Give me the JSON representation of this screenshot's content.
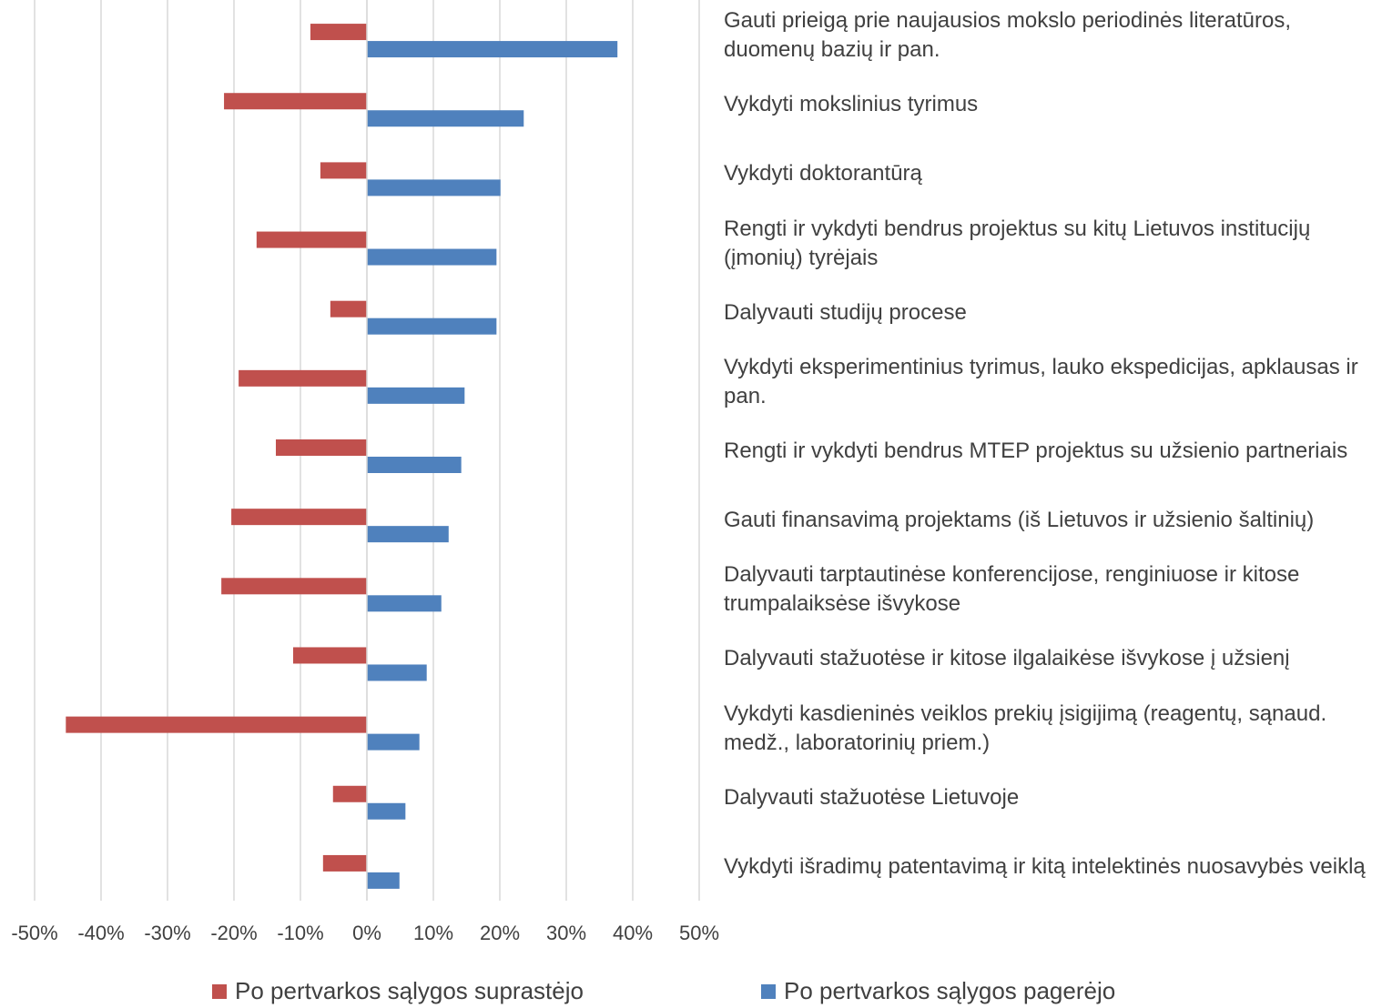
{
  "chart_data": {
    "type": "hbar",
    "categories": [
      "Gauti prieigą prie naujausios mokslo periodinės literatūros, duomenų bazių ir pan.",
      "Vykdyti mokslinius tyrimus",
      "Vykdyti doktorantūrą",
      "Rengti ir vykdyti bendrus projektus su kitų Lietuvos institucijų (įmonių) tyrėjais",
      "Dalyvauti studijų procese",
      "Vykdyti eksperimentinius tyrimus, lauko ekspedicijas, apklausas ir pan.",
      "Rengti ir vykdyti bendrus MTEP projektus su užsienio partneriais",
      "Gauti finansavimą projektams (iš Lietuvos ir užsienio šaltinių)",
      "Dalyvauti tarptautinėse konferencijose, renginiuose ir kitose trumpalaiksėse išvykose",
      "Dalyvauti stažuotėse ir kitose ilgalaikėse išvykose į užsienį",
      "Vykdyti kasdieninės veiklos prekių įsigijimą (reagentų, sąnaud. medž., laboratorinių priem.)",
      "Dalyvauti stažuotėse Lietuvoje",
      "Vykdyti išradimų patentavimą ir kitą intelektinės nuosavybės veiklą"
    ],
    "series": [
      {
        "name": "Po pertvarkos sąlygos suprastėjo",
        "color": "#c0504d",
        "values": [
          -8.5,
          -21.5,
          -7,
          -16.6,
          -5.5,
          -19.3,
          -13.7,
          -20.4,
          -21.9,
          -11.1,
          -45.3,
          -5.1,
          -6.6
        ]
      },
      {
        "name": "Po pertvarkos sąlygos pagerėjo",
        "color": "#4f81bd",
        "values": [
          37.7,
          23.6,
          20.1,
          19.5,
          19.5,
          14.7,
          14.2,
          12.3,
          11.2,
          9.0,
          7.9,
          5.8,
          4.9
        ]
      }
    ],
    "xlim": [
      -50,
      50
    ],
    "xticks": [
      {
        "value": -50,
        "label": "-50%"
      },
      {
        "value": -40,
        "label": "-40%"
      },
      {
        "value": -30,
        "label": "-30%"
      },
      {
        "value": -20,
        "label": "-20%"
      },
      {
        "value": -10,
        "label": "-10%"
      },
      {
        "value": 0,
        "label": "0%"
      },
      {
        "value": 10,
        "label": "10%"
      },
      {
        "value": 20,
        "label": "20%"
      },
      {
        "value": 30,
        "label": "30%"
      },
      {
        "value": 40,
        "label": "40%"
      },
      {
        "value": 50,
        "label": "50%"
      }
    ],
    "grid": true,
    "legend": "bottom"
  }
}
